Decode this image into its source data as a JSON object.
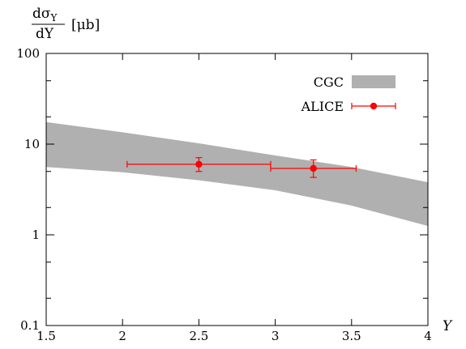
{
  "chart_data": {
    "type": "scatter",
    "title": "",
    "xlabel": "Y",
    "ylabel": "dσ_Υ/dY [μb]",
    "ylabel_parts": {
      "num": "dσ",
      "sub": "Υ",
      "den": "dY",
      "unit": "[μb]"
    },
    "xlim": [
      1.5,
      4
    ],
    "ylim": [
      0.1,
      100
    ],
    "yscale": "log",
    "grid": false,
    "legend_position": "top-right",
    "x_ticks": [
      1.5,
      2,
      2.5,
      3,
      3.5,
      4
    ],
    "x_tick_labels": [
      "1.5",
      "2",
      "2.5",
      "3",
      "3.5",
      "4"
    ],
    "y_ticks": [
      0.1,
      1,
      10,
      100
    ],
    "y_tick_labels": [
      "0.1",
      "1",
      "10",
      "100"
    ],
    "series": [
      {
        "name": "CGC",
        "kind": "band",
        "color": "#b0b0b0",
        "x": [
          1.5,
          2.0,
          2.5,
          3.0,
          3.5,
          4.0
        ],
        "upper": [
          17.5,
          13.5,
          10.2,
          7.5,
          5.6,
          3.8
        ],
        "lower": [
          5.6,
          4.9,
          4.0,
          3.1,
          2.1,
          1.25
        ]
      },
      {
        "name": "ALICE",
        "kind": "points",
        "color": "#ff0000",
        "points": [
          {
            "x": 2.5,
            "xerr": [
              0.47,
              0.47
            ],
            "y": 6.0,
            "yerr": [
              1.0,
              1.1
            ]
          },
          {
            "x": 3.25,
            "xerr": [
              0.28,
              0.28
            ],
            "y": 5.4,
            "yerr": [
              1.1,
              1.3
            ]
          }
        ]
      }
    ]
  }
}
